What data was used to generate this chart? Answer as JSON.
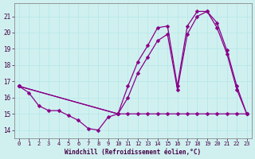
{
  "xlabel": "Windchill (Refroidissement éolien,°C)",
  "background_color": "#d0f0f0",
  "grid_color": "#b8e8e8",
  "line_color": "#880088",
  "xlim": [
    -0.5,
    23.5
  ],
  "ylim": [
    13.5,
    21.8
  ],
  "yticks": [
    14,
    15,
    16,
    17,
    18,
    19,
    20,
    21
  ],
  "xticks": [
    0,
    1,
    2,
    3,
    4,
    5,
    6,
    7,
    8,
    9,
    10,
    11,
    12,
    13,
    14,
    15,
    16,
    17,
    18,
    19,
    20,
    21,
    22,
    23
  ],
  "series1_x": [
    0,
    1,
    2,
    3,
    4,
    5,
    6,
    7,
    8,
    9,
    10,
    11,
    12,
    13,
    14,
    15,
    16,
    17,
    18,
    19,
    20,
    21,
    22,
    23
  ],
  "series1_y": [
    16.7,
    16.3,
    15.5,
    15.2,
    15.2,
    14.9,
    14.6,
    14.1,
    14.0,
    14.8,
    15.0,
    15.0,
    15.0,
    15.0,
    15.0,
    15.0,
    15.0,
    15.0,
    15.0,
    15.0,
    15.0,
    15.0,
    15.0,
    15.0
  ],
  "series2_x": [
    0,
    10,
    11,
    12,
    13,
    14,
    15,
    16,
    17,
    18,
    19,
    20,
    21,
    22,
    23
  ],
  "series2_y": [
    16.7,
    15.0,
    16.7,
    18.2,
    19.2,
    20.3,
    20.4,
    16.7,
    20.4,
    21.3,
    21.3,
    20.6,
    18.9,
    16.7,
    15.0
  ],
  "series3_x": [
    0,
    10,
    11,
    12,
    13,
    14,
    15,
    16,
    17,
    18,
    19,
    20,
    21,
    22,
    23
  ],
  "series3_y": [
    16.7,
    15.0,
    16.0,
    17.5,
    18.5,
    19.5,
    19.9,
    16.5,
    19.9,
    21.0,
    21.3,
    20.3,
    18.7,
    16.5,
    15.0
  ],
  "marker_size": 2.5,
  "line_width": 0.9,
  "tick_fontsize": 5,
  "xlabel_fontsize": 5.5
}
